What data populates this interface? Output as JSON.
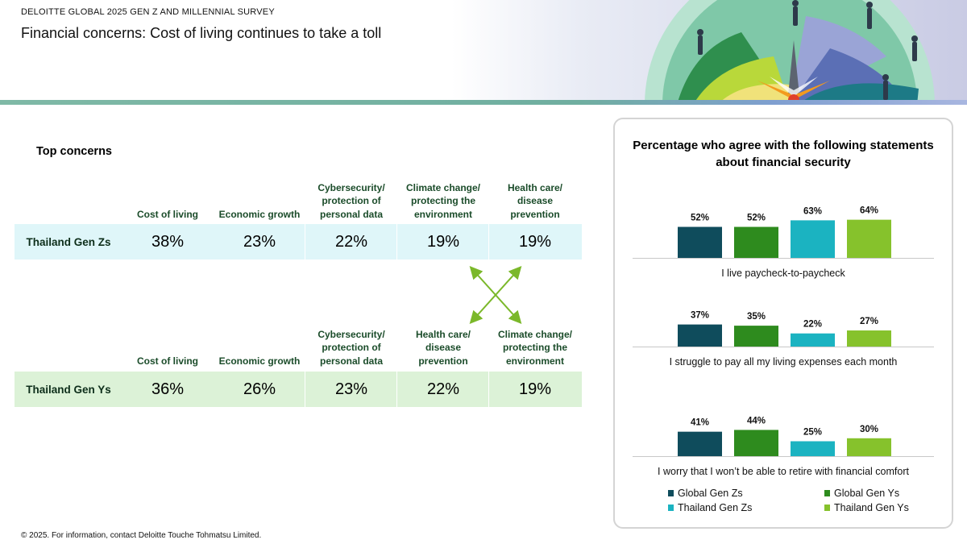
{
  "header": {
    "survey_label": "DELOITTE GLOBAL 2025 GEN Z AND MILLENNIAL SURVEY",
    "title": "Financial concerns: Cost of living continues to take a toll"
  },
  "top_concerns": {
    "heading": "Top concerns",
    "rows": [
      {
        "label": "Thailand Gen Zs",
        "band_color": "#dff6f9",
        "columns": [
          "Cost of living",
          "Economic growth",
          "Cybersecurity/\nprotection of\npersonal data",
          "Climate change/\nprotecting the\nenvironment",
          "Health care/\ndisease\nprevention"
        ],
        "values": [
          "38%",
          "23%",
          "22%",
          "19%",
          "19%"
        ]
      },
      {
        "label": "Thailand Gen Ys",
        "band_color": "#dcf2d7",
        "columns": [
          "Cost of living",
          "Economic growth",
          "Cybersecurity/\nprotection of\npersonal data",
          "Health care/\ndisease\nprevention",
          "Climate change/\nprotecting the\nenvironment"
        ],
        "values": [
          "36%",
          "26%",
          "23%",
          "22%",
          "19%"
        ]
      }
    ]
  },
  "chart_data": {
    "type": "bar",
    "title": "Percentage who agree with the following statements about financial security",
    "categories": [
      "I live paycheck-to-paycheck",
      "I struggle to pay all my living expenses each month",
      "I worry that I won’t be able to retire with financial comfort"
    ],
    "series": [
      {
        "name": "Global Gen Zs",
        "color": "#0f4c5c",
        "values": [
          52,
          37,
          41
        ],
        "labels": [
          "52%",
          "37%",
          "41%"
        ]
      },
      {
        "name": "Global Gen Ys",
        "color": "#2e8b1e",
        "values": [
          52,
          35,
          44
        ],
        "labels": [
          "52%",
          "35%",
          "44%"
        ]
      },
      {
        "name": "Thailand Gen Zs",
        "color": "#1bb3c1",
        "values": [
          63,
          22,
          25
        ],
        "labels": [
          "63%",
          "22%",
          "25%"
        ]
      },
      {
        "name": "Thailand Gen Ys",
        "color": "#86c22c",
        "values": [
          64,
          27,
          30
        ],
        "labels": [
          "64%",
          "27%",
          "30%"
        ]
      }
    ],
    "legend_position": "bottom",
    "grid": false
  },
  "footer": {
    "note": "© 2025. For information, contact Deloitte Touche Tohmatsu Limited."
  }
}
